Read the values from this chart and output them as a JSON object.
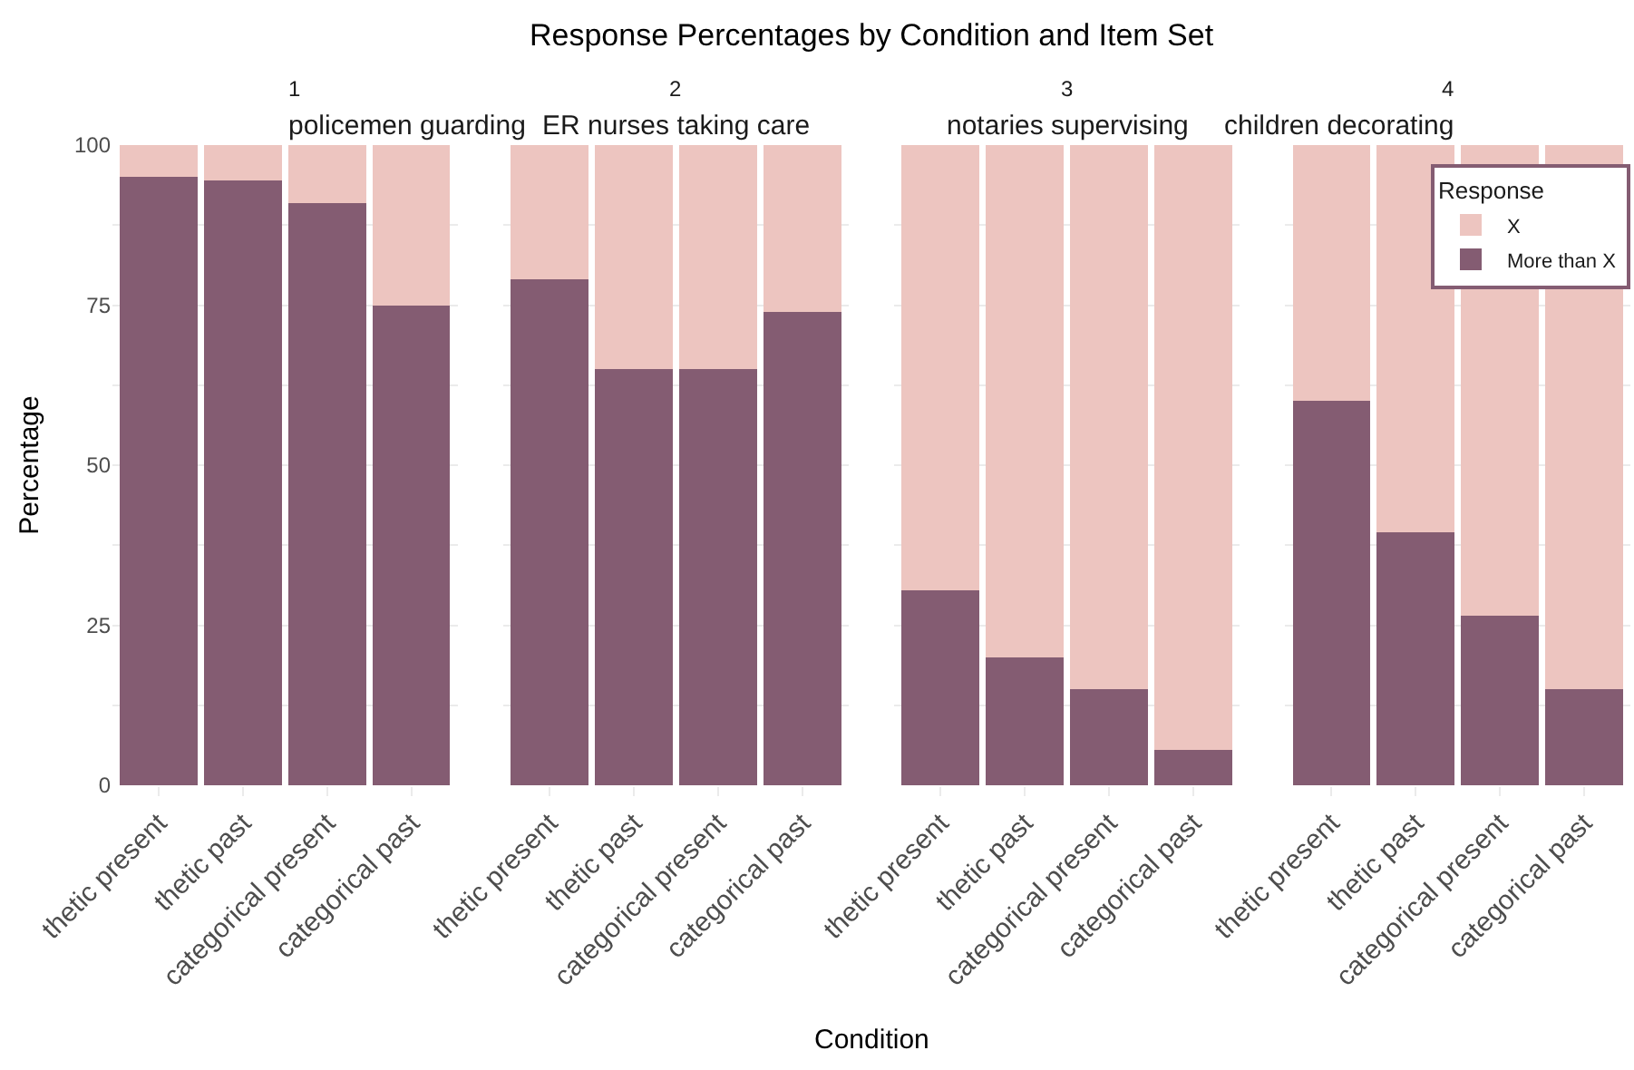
{
  "chart_data": [
    {
      "type": "bar",
      "stacked": true,
      "title": "1",
      "subtitle": "policemen guarding",
      "ylabel": "Percentage",
      "annotations": [
        "Response Percentages by Condition and Item Set",
        "Condition"
      ],
      "categories": [
        "thetic present",
        "thetic past",
        "categorical present",
        "categorical past"
      ],
      "series": [
        {
          "color": "#845c72",
          "values": [
            95,
            94.5,
            91,
            75
          ]
        },
        {
          "color": "#edc5c0",
          "values": [
            5,
            5.5,
            9,
            25
          ]
        }
      ],
      "ylim": [
        0,
        100
      ],
      "yticks": [
        0,
        {
          "value": 12.5,
          "label": null
        },
        25,
        {
          "value": 37.5,
          "label": null
        },
        50,
        {
          "value": 62.5,
          "label": null
        },
        75,
        {
          "value": 87.5,
          "label": null
        },
        100
      ],
      "grid": true
    },
    {
      "type": "bar",
      "stacked": true,
      "title": "2",
      "subtitle": "ER nurses taking care",
      "categories": [
        "thetic present",
        "thetic past",
        "categorical present",
        "categorical past"
      ],
      "series": [
        {
          "color": "#845c72",
          "values": [
            79,
            65,
            65,
            74
          ]
        },
        {
          "color": "#edc5c0",
          "values": [
            21,
            35,
            35,
            26
          ]
        }
      ],
      "ylim": [
        0,
        100
      ],
      "yticks": [
        0,
        {
          "value": 12.5,
          "label": null
        },
        25,
        {
          "value": 37.5,
          "label": null
        },
        50,
        {
          "value": 62.5,
          "label": null
        },
        75,
        {
          "value": 87.5,
          "label": null
        },
        100
      ],
      "grid": true,
      "tick_labels": "x"
    },
    {
      "type": "bar",
      "stacked": true,
      "title": "3",
      "subtitle": "notaries supervising",
      "categories": [
        "thetic present",
        "thetic past",
        "categorical present",
        "categorical past"
      ],
      "series": [
        {
          "color": "#845c72",
          "values": [
            30.5,
            20,
            15,
            5.5
          ]
        },
        {
          "color": "#edc5c0",
          "values": [
            69.5,
            80,
            85,
            94.5
          ]
        }
      ],
      "ylim": [
        0,
        100
      ],
      "yticks": [
        0,
        {
          "value": 12.5,
          "label": null
        },
        25,
        {
          "value": 37.5,
          "label": null
        },
        50,
        {
          "value": 62.5,
          "label": null
        },
        75,
        {
          "value": 87.5,
          "label": null
        },
        100
      ],
      "grid": true,
      "tick_labels": "x"
    },
    {
      "type": "bar",
      "stacked": true,
      "title": "4",
      "subtitle": "children decorating",
      "legend": "top right",
      "legend_title": "Response",
      "categories": [
        "thetic present",
        "thetic past",
        "categorical present",
        "categorical past"
      ],
      "series": [
        {
          "name": "More than X",
          "color": "#845c72",
          "values": [
            60,
            39.5,
            26.5,
            15
          ]
        },
        {
          "name": "X",
          "color": "#edc5c0",
          "values": [
            40,
            60.5,
            73.5,
            85
          ]
        }
      ],
      "ylim": [
        0,
        100
      ],
      "yticks": [
        0,
        {
          "value": 12.5,
          "label": null
        },
        25,
        {
          "value": 37.5,
          "label": null
        },
        50,
        {
          "value": 62.5,
          "label": null
        },
        75,
        {
          "value": 87.5,
          "label": null
        },
        100
      ],
      "grid": true,
      "tick_labels": "x"
    }
  ]
}
